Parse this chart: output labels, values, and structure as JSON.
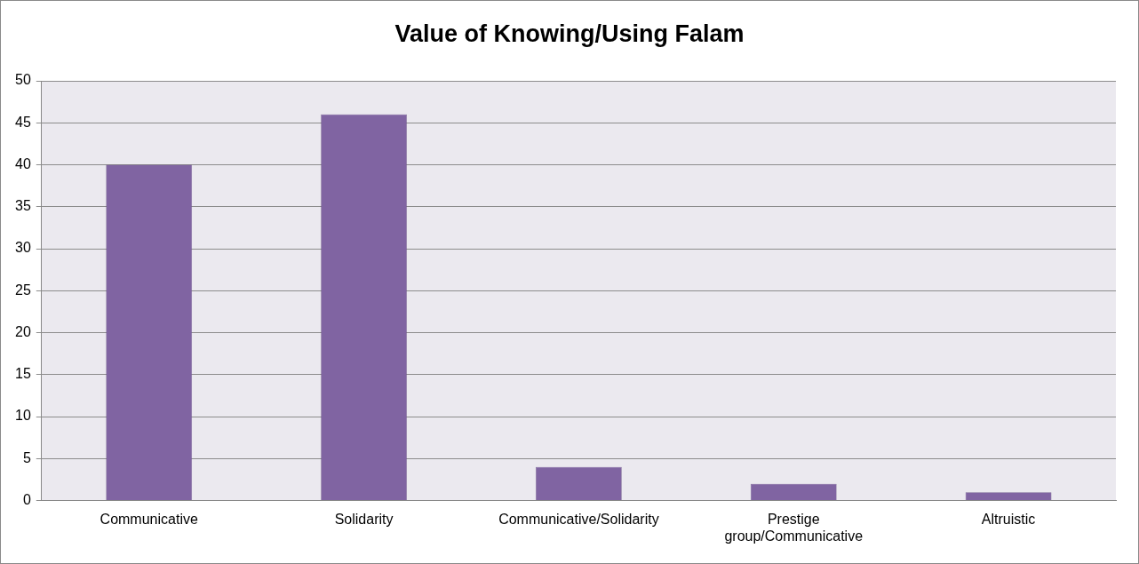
{
  "chart_data": {
    "type": "bar",
    "title": "Value of Knowing/Using Falam",
    "categories": [
      "Communicative",
      "Solidarity",
      "Communicative/Solidarity",
      "Prestige group/Communicative",
      "Altruistic"
    ],
    "values": [
      40,
      46,
      4,
      2,
      1
    ],
    "color": "#8064a2",
    "ylim": [
      0,
      50
    ],
    "yticks": [
      0,
      5,
      10,
      15,
      20,
      25,
      30,
      35,
      40,
      45,
      50
    ],
    "grid": "y",
    "legend": false
  }
}
